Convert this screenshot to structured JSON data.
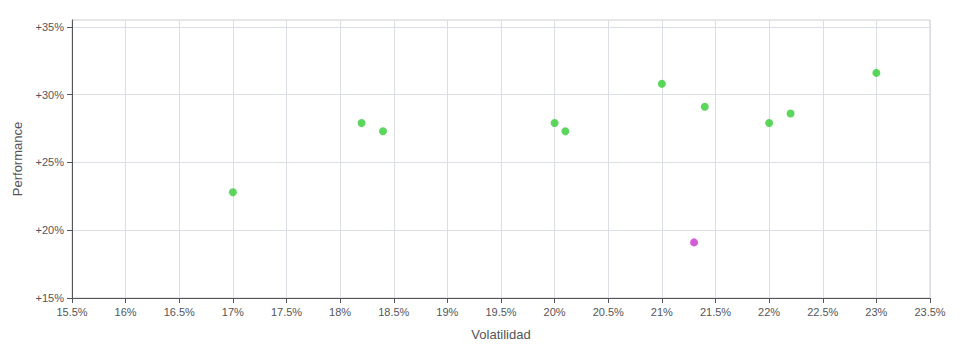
{
  "chart_data": {
    "type": "scatter",
    "xlabel": "Volatilidad",
    "ylabel": "Performance",
    "series": [
      {
        "color": "#33cc33",
        "x": [
          0.17,
          0.182,
          0.184,
          0.2,
          0.201,
          0.21,
          0.214,
          0.22,
          0.222,
          0.23
        ],
        "values": [
          0.228,
          0.279,
          0.273,
          0.279,
          0.273,
          0.308,
          0.291,
          0.279,
          0.286,
          0.316
        ]
      },
      {
        "color": "#cc33cc",
        "x": [
          0.213
        ],
        "values": [
          0.191
        ]
      }
    ],
    "xlim": [
      0.155,
      0.235
    ],
    "ylim": [
      0.15,
      0.355
    ],
    "xticks": [
      {
        "value": 0.155,
        "label": "15.5%"
      },
      {
        "value": 0.16,
        "label": "16%"
      },
      {
        "value": 0.165,
        "label": "16.5%"
      },
      {
        "value": 0.17,
        "label": "17%"
      },
      {
        "value": 0.175,
        "label": "17.5%"
      },
      {
        "value": 0.18,
        "label": "18%"
      },
      {
        "value": 0.185,
        "label": "18.5%"
      },
      {
        "value": 0.19,
        "label": "19%"
      },
      {
        "value": 0.195,
        "label": "19.5%"
      },
      {
        "value": 0.2,
        "label": "20%"
      },
      {
        "value": 0.205,
        "label": "20.5%"
      },
      {
        "value": 0.21,
        "label": "21%"
      },
      {
        "value": 0.215,
        "label": "21.5%"
      },
      {
        "value": 0.22,
        "label": "22%"
      },
      {
        "value": 0.225,
        "label": "22.5%"
      },
      {
        "value": 0.23,
        "label": "23%"
      },
      {
        "value": 0.235,
        "label": "23.5%"
      }
    ],
    "yticks": [
      {
        "value": 0.15,
        "label": "+15%"
      },
      {
        "value": 0.2,
        "label": "+20%"
      },
      {
        "value": 0.25,
        "label": "+25%"
      },
      {
        "value": 0.3,
        "label": "+30%"
      },
      {
        "value": 0.35,
        "label": "+35%"
      }
    ],
    "grid": true
  }
}
